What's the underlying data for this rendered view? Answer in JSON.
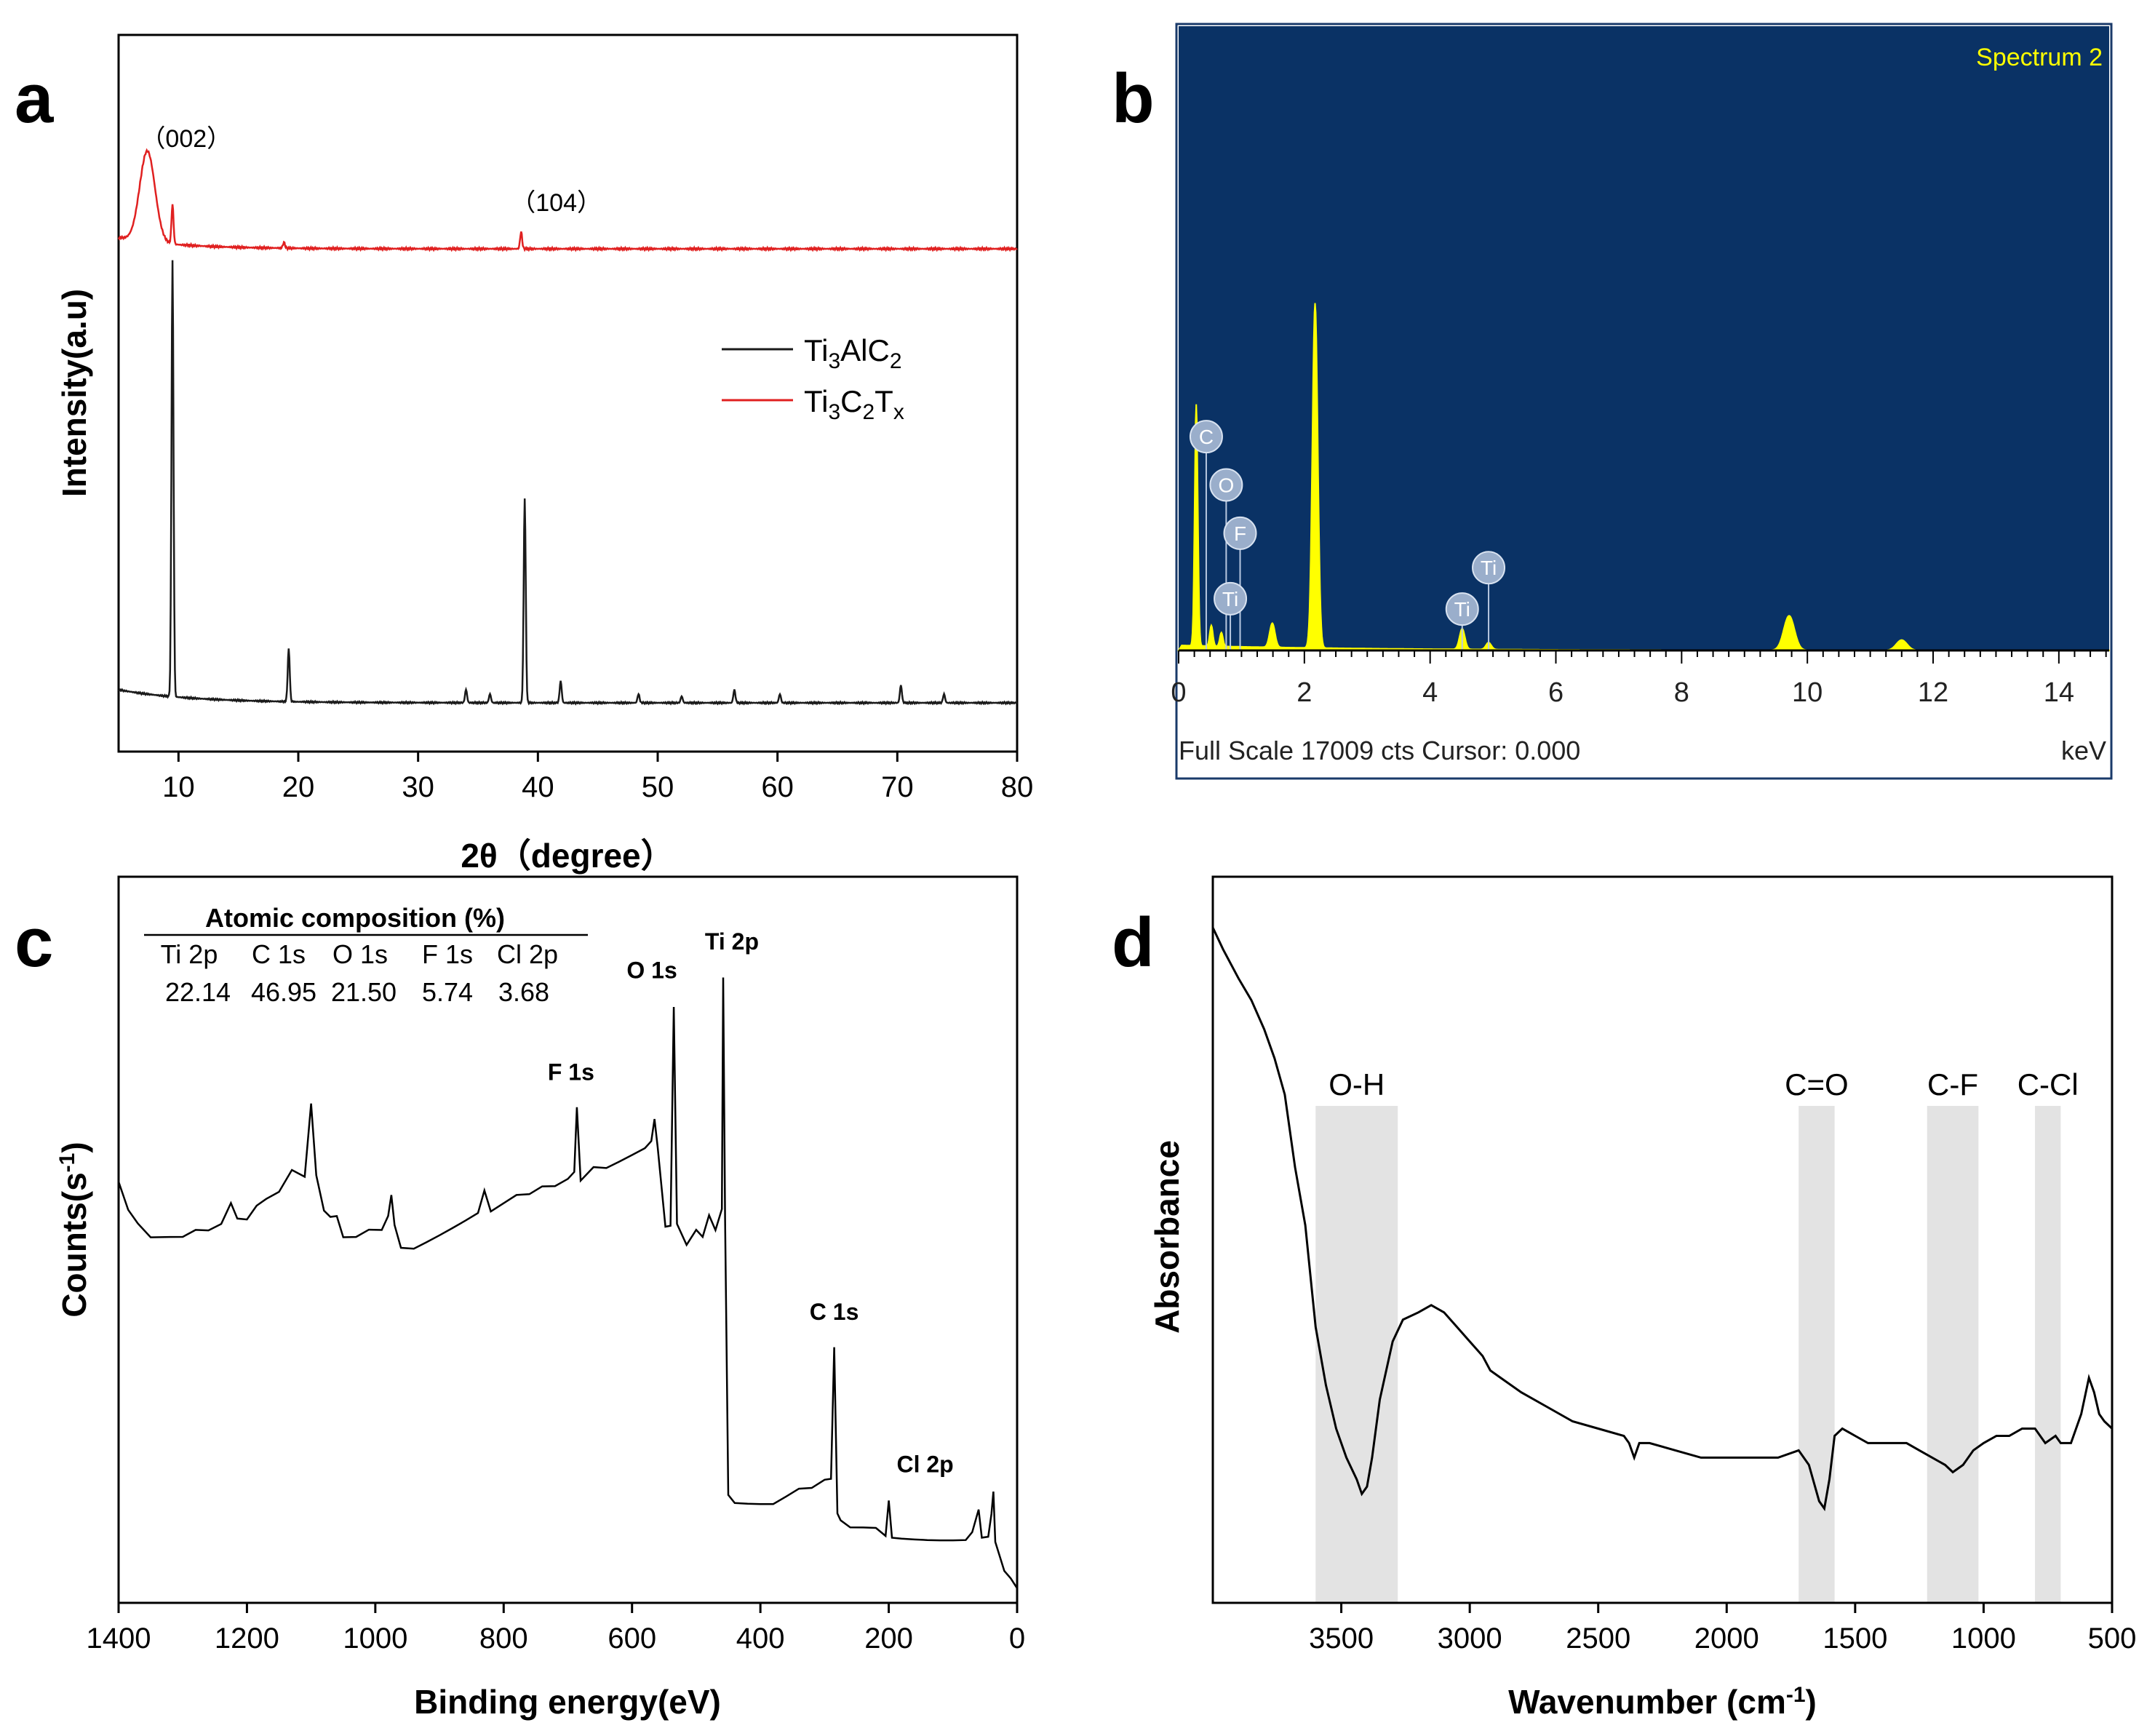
{
  "panel_labels": {
    "a": "a",
    "b": "b",
    "c": "c",
    "d": "d"
  },
  "chart_data": [
    {
      "id": "a",
      "type": "line",
      "title": "",
      "xlabel": "2θ（degree）",
      "ylabel": "Intensity(a.u)",
      "xlim": [
        5,
        80
      ],
      "xticks": [
        10,
        20,
        30,
        40,
        50,
        60,
        70,
        80
      ],
      "legend": {
        "position": "top-right",
        "entries": [
          {
            "series": "Ti3AlC2",
            "base": "Ti",
            "sub1": "3",
            "mid": "AlC",
            "sub2": "2",
            "end": ""
          },
          {
            "series": "Ti3C2Tx",
            "base": "Ti",
            "sub1": "3",
            "mid": "C",
            "sub2": "2",
            "end": "T",
            "sub3": "x"
          }
        ]
      },
      "annotations": [
        {
          "text": "（002）",
          "x": 7.6
        },
        {
          "text": "（104）",
          "x": 38.5
        }
      ],
      "series": [
        {
          "name": "Ti3AlC2",
          "color": "#000000",
          "baseline": 0.04,
          "peaks": [
            [
              9.5,
              1.0
            ],
            [
              19.2,
              0.12
            ],
            [
              34.0,
              0.03
            ],
            [
              36.0,
              0.02
            ],
            [
              38.9,
              0.47
            ],
            [
              41.9,
              0.05
            ],
            [
              48.4,
              0.02
            ],
            [
              52.0,
              0.015
            ],
            [
              56.4,
              0.03
            ],
            [
              60.2,
              0.02
            ],
            [
              70.3,
              0.04
            ],
            [
              73.9,
              0.02
            ]
          ]
        },
        {
          "name": "Ti3C2Tx",
          "color": "#e02020",
          "baseline": 1.04,
          "peaks": [
            [
              7.4,
              0.16
            ],
            [
              9.5,
              0.07
            ],
            [
              18.8,
              0.01
            ],
            [
              38.6,
              0.03
            ]
          ]
        }
      ]
    },
    {
      "id": "b",
      "type": "area",
      "title": "Spectrum 2",
      "xlabel": "keV",
      "footer": "Full Scale 17009 cts Cursor: 0.000",
      "xlim": [
        0,
        14.8
      ],
      "xticks": [
        0,
        2,
        4,
        6,
        8,
        10,
        12,
        14
      ],
      "background": "#0a3265",
      "fill": "#ffff00",
      "peaks": [
        [
          0.28,
          0.7
        ],
        [
          0.52,
          0.06
        ],
        [
          0.68,
          0.04
        ],
        [
          1.49,
          0.07
        ],
        [
          2.17,
          1.0
        ],
        [
          4.51,
          0.06
        ],
        [
          4.93,
          0.02
        ],
        [
          9.71,
          0.1
        ],
        [
          11.5,
          0.03
        ]
      ],
      "element_markers": [
        {
          "label": "C",
          "x": 0.277,
          "level": 0.62
        },
        {
          "label": "O",
          "x": 0.525,
          "level": 0.48
        },
        {
          "label": "F",
          "x": 0.677,
          "level": 0.34
        },
        {
          "label": "Ti",
          "x": 0.452,
          "level": 0.15
        },
        {
          "label": "Ti",
          "x": 4.51,
          "level": 0.12
        },
        {
          "label": "Ti",
          "x": 4.93,
          "level": 0.24
        }
      ]
    },
    {
      "id": "c",
      "type": "line",
      "xlabel": "Binding energy(eV)",
      "ylabel": "Counts(s⁻¹)",
      "ylabel_base": "Counts(s",
      "ylabel_sup": "-1",
      "ylabel_end": ")",
      "xlim": [
        1400,
        0
      ],
      "xticks": [
        1400,
        1200,
        1000,
        800,
        600,
        400,
        200,
        0
      ],
      "points": [
        [
          1400,
          0.58
        ],
        [
          1385,
          0.54
        ],
        [
          1370,
          0.52
        ],
        [
          1350,
          0.5
        ],
        [
          1320,
          0.5
        ],
        [
          1300,
          0.5
        ],
        [
          1280,
          0.51
        ],
        [
          1260,
          0.51
        ],
        [
          1240,
          0.52
        ],
        [
          1225,
          0.55
        ],
        [
          1215,
          0.53
        ],
        [
          1200,
          0.53
        ],
        [
          1185,
          0.55
        ],
        [
          1170,
          0.56
        ],
        [
          1150,
          0.57
        ],
        [
          1130,
          0.6
        ],
        [
          1110,
          0.59
        ],
        [
          1100,
          0.69
        ],
        [
          1092,
          0.59
        ],
        [
          1080,
          0.54
        ],
        [
          1070,
          0.53
        ],
        [
          1060,
          0.53
        ],
        [
          1050,
          0.5
        ],
        [
          1030,
          0.5
        ],
        [
          1010,
          0.51
        ],
        [
          990,
          0.51
        ],
        [
          980,
          0.53
        ],
        [
          975,
          0.56
        ],
        [
          970,
          0.52
        ],
        [
          960,
          0.49
        ],
        [
          940,
          0.49
        ],
        [
          920,
          0.5
        ],
        [
          900,
          0.51
        ],
        [
          880,
          0.52
        ],
        [
          860,
          0.53
        ],
        [
          840,
          0.54
        ],
        [
          830,
          0.57
        ],
        [
          820,
          0.54
        ],
        [
          800,
          0.55
        ],
        [
          780,
          0.56
        ],
        [
          760,
          0.56
        ],
        [
          740,
          0.57
        ],
        [
          720,
          0.57
        ],
        [
          700,
          0.58
        ],
        [
          690,
          0.59
        ],
        [
          686,
          0.68
        ],
        [
          680,
          0.58
        ],
        [
          660,
          0.6
        ],
        [
          640,
          0.6
        ],
        [
          620,
          0.61
        ],
        [
          600,
          0.62
        ],
        [
          580,
          0.63
        ],
        [
          570,
          0.64
        ],
        [
          565,
          0.67
        ],
        [
          560,
          0.63
        ],
        [
          548,
          0.52
        ],
        [
          540,
          0.52
        ],
        [
          535,
          0.82
        ],
        [
          530,
          0.52
        ],
        [
          515,
          0.49
        ],
        [
          500,
          0.51
        ],
        [
          490,
          0.5
        ],
        [
          480,
          0.53
        ],
        [
          470,
          0.51
        ],
        [
          460,
          0.54
        ],
        [
          458,
          0.86
        ],
        [
          455,
          0.53
        ],
        [
          450,
          0.15
        ],
        [
          440,
          0.14
        ],
        [
          420,
          0.14
        ],
        [
          400,
          0.14
        ],
        [
          380,
          0.14
        ],
        [
          360,
          0.15
        ],
        [
          340,
          0.16
        ],
        [
          320,
          0.16
        ],
        [
          300,
          0.17
        ],
        [
          290,
          0.17
        ],
        [
          285,
          0.35
        ],
        [
          280,
          0.12
        ],
        [
          275,
          0.11
        ],
        [
          260,
          0.1
        ],
        [
          240,
          0.1
        ],
        [
          220,
          0.1
        ],
        [
          205,
          0.09
        ],
        [
          200,
          0.14
        ],
        [
          195,
          0.09
        ],
        [
          180,
          0.09
        ],
        [
          160,
          0.09
        ],
        [
          140,
          0.09
        ],
        [
          120,
          0.09
        ],
        [
          100,
          0.09
        ],
        [
          80,
          0.09
        ],
        [
          70,
          0.1
        ],
        [
          60,
          0.13
        ],
        [
          55,
          0.09
        ],
        [
          45,
          0.09
        ],
        [
          40,
          0.12
        ],
        [
          37,
          0.15
        ],
        [
          34,
          0.08
        ],
        [
          20,
          0.04
        ],
        [
          10,
          0.03
        ],
        [
          0,
          0.02
        ]
      ],
      "peak_labels": [
        {
          "text": "F 1s",
          "x": 686
        },
        {
          "text": "O 1s",
          "x": 535
        },
        {
          "text": "Ti 2p",
          "x": 458
        },
        {
          "text": "C 1s",
          "x": 285
        },
        {
          "text": "Cl 2p",
          "x": 200
        }
      ],
      "table": {
        "title": "Atomic composition (%)",
        "headers": [
          "Ti 2p",
          "C 1s",
          "O 1s",
          "F 1s",
          "Cl 2p"
        ],
        "values": [
          "22.14",
          "46.95",
          "21.50",
          "5.74",
          "3.68"
        ]
      }
    },
    {
      "id": "d",
      "type": "line",
      "xlabel": "Wavenumber (cm⁻¹)",
      "xlabel_base": "Wavenumber (cm",
      "xlabel_sup": "-1",
      "xlabel_end": ")",
      "ylabel": "Absorbance",
      "xlim": [
        4000,
        500
      ],
      "xticks": [
        3500,
        3000,
        2500,
        2000,
        1500,
        1000,
        500
      ],
      "points": [
        [
          4000,
          0.93
        ],
        [
          3960,
          0.9
        ],
        [
          3900,
          0.86
        ],
        [
          3850,
          0.83
        ],
        [
          3800,
          0.79
        ],
        [
          3760,
          0.75
        ],
        [
          3720,
          0.7
        ],
        [
          3680,
          0.6
        ],
        [
          3640,
          0.52
        ],
        [
          3600,
          0.38
        ],
        [
          3560,
          0.3
        ],
        [
          3520,
          0.24
        ],
        [
          3480,
          0.2
        ],
        [
          3440,
          0.17
        ],
        [
          3420,
          0.15
        ],
        [
          3400,
          0.16
        ],
        [
          3380,
          0.2
        ],
        [
          3350,
          0.28
        ],
        [
          3300,
          0.36
        ],
        [
          3260,
          0.39
        ],
        [
          3200,
          0.4
        ],
        [
          3150,
          0.41
        ],
        [
          3100,
          0.4
        ],
        [
          3050,
          0.38
        ],
        [
          3000,
          0.36
        ],
        [
          2950,
          0.34
        ],
        [
          2920,
          0.32
        ],
        [
          2880,
          0.31
        ],
        [
          2800,
          0.29
        ],
        [
          2700,
          0.27
        ],
        [
          2600,
          0.25
        ],
        [
          2500,
          0.24
        ],
        [
          2400,
          0.23
        ],
        [
          2380,
          0.22
        ],
        [
          2360,
          0.2
        ],
        [
          2340,
          0.22
        ],
        [
          2300,
          0.22
        ],
        [
          2200,
          0.21
        ],
        [
          2100,
          0.2
        ],
        [
          2000,
          0.2
        ],
        [
          1900,
          0.2
        ],
        [
          1800,
          0.2
        ],
        [
          1720,
          0.21
        ],
        [
          1680,
          0.19
        ],
        [
          1640,
          0.14
        ],
        [
          1620,
          0.13
        ],
        [
          1600,
          0.17
        ],
        [
          1580,
          0.23
        ],
        [
          1550,
          0.24
        ],
        [
          1500,
          0.23
        ],
        [
          1450,
          0.22
        ],
        [
          1400,
          0.22
        ],
        [
          1350,
          0.22
        ],
        [
          1300,
          0.22
        ],
        [
          1250,
          0.21
        ],
        [
          1200,
          0.2
        ],
        [
          1150,
          0.19
        ],
        [
          1120,
          0.18
        ],
        [
          1080,
          0.19
        ],
        [
          1040,
          0.21
        ],
        [
          1000,
          0.22
        ],
        [
          950,
          0.23
        ],
        [
          900,
          0.23
        ],
        [
          850,
          0.24
        ],
        [
          800,
          0.24
        ],
        [
          760,
          0.22
        ],
        [
          720,
          0.23
        ],
        [
          700,
          0.22
        ],
        [
          660,
          0.22
        ],
        [
          620,
          0.26
        ],
        [
          590,
          0.31
        ],
        [
          570,
          0.29
        ],
        [
          550,
          0.26
        ],
        [
          530,
          0.25
        ],
        [
          500,
          0.24
        ]
      ],
      "bands": [
        {
          "label": "O-H",
          "from": 3600,
          "to": 3280
        },
        {
          "label": "C=O",
          "from": 1720,
          "to": 1580
        },
        {
          "label": "C-F",
          "from": 1220,
          "to": 1020
        },
        {
          "label": "C-Cl",
          "from": 800,
          "to": 700
        }
      ]
    }
  ]
}
